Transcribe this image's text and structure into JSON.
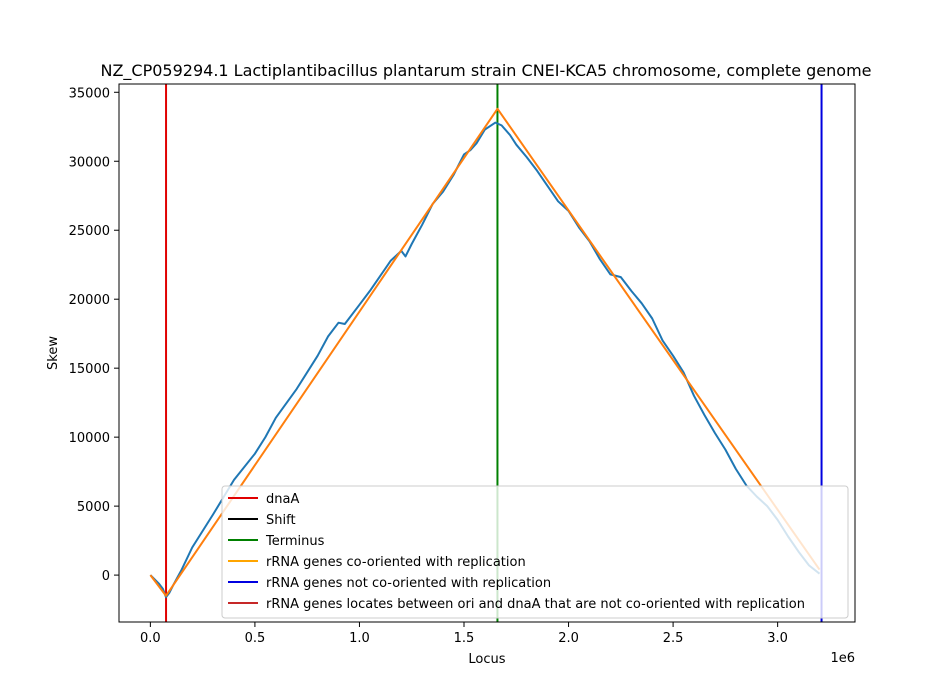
{
  "chart_data": {
    "type": "line",
    "title": "NZ_CP059294.1 Lactiplantibacillus plantarum strain CNEI-KCA5 chromosome, complete genome",
    "xlabel": "Locus",
    "ylabel": "Skew",
    "x_offset_label": "1e6",
    "xlim": [
      -150000,
      3370000
    ],
    "ylim": [
      -3400,
      35600
    ],
    "x_ticks": [
      0,
      500000,
      1000000,
      1500000,
      2000000,
      2500000,
      3000000
    ],
    "x_tick_labels": [
      "0.0",
      "0.5",
      "1.0",
      "1.5",
      "2.0",
      "2.5",
      "3.0"
    ],
    "y_ticks": [
      0,
      5000,
      10000,
      15000,
      20000,
      25000,
      30000,
      35000
    ],
    "y_tick_labels": [
      "0",
      "5000",
      "10000",
      "15000",
      "20000",
      "25000",
      "30000",
      "35000"
    ],
    "grid": false,
    "legend_position": "lower-right",
    "series": [
      {
        "color": "#1f77b4",
        "x": [
          0,
          40000,
          60000,
          75000,
          90000,
          110000,
          150000,
          200000,
          300000,
          400000,
          500000,
          550000,
          600000,
          700000,
          800000,
          850000,
          900000,
          930000,
          950000,
          1000000,
          1050000,
          1100000,
          1150000,
          1200000,
          1220000,
          1250000,
          1300000,
          1350000,
          1400000,
          1450000,
          1500000,
          1530000,
          1560000,
          1600000,
          1650000,
          1680000,
          1720000,
          1750000,
          1800000,
          1850000,
          1900000,
          1950000,
          2000000,
          2050000,
          2100000,
          2150000,
          2200000,
          2250000,
          2300000,
          2350000,
          2400000,
          2450000,
          2500000,
          2550000,
          2600000,
          2650000,
          2700000,
          2750000,
          2800000,
          2850000,
          2900000,
          2950000,
          3000000,
          3050000,
          3100000,
          3150000,
          3200000
        ],
        "y": [
          0,
          -600,
          -1000,
          -1600,
          -1300,
          -700,
          400,
          2000,
          4400,
          6900,
          8800,
          10000,
          11400,
          13500,
          15900,
          17300,
          18300,
          18200,
          18600,
          19600,
          20600,
          21700,
          22800,
          23500,
          23100,
          24000,
          25400,
          26900,
          27800,
          29000,
          30500,
          30800,
          31300,
          32300,
          32800,
          32600,
          31900,
          31200,
          30300,
          29300,
          28200,
          27100,
          26400,
          25200,
          24200,
          22900,
          21800,
          21600,
          20600,
          19700,
          18600,
          17000,
          15900,
          14700,
          13000,
          11600,
          10300,
          9100,
          7700,
          6500,
          5700,
          5000,
          4000,
          2800,
          1700,
          700,
          100
        ]
      },
      {
        "color": "#ff7f0e",
        "x": [
          0,
          75000,
          1660000,
          3200000
        ],
        "y": [
          0,
          -1500,
          33800,
          400
        ]
      }
    ],
    "vertical_lines": [
      {
        "name": "dnaA",
        "x": 75000,
        "color": "#e00000"
      },
      {
        "name": "Terminus",
        "x": 1660000,
        "color": "#008000"
      },
      {
        "name": "rRNA genes not co-oriented with replication",
        "x": 3210000,
        "color": "#0000e0"
      }
    ],
    "legend": [
      {
        "label": "dnaA",
        "color": "#e00000"
      },
      {
        "label": "Shift",
        "color": "#000000"
      },
      {
        "label": "Terminus",
        "color": "#008000"
      },
      {
        "label": "rRNA genes co-oriented with replication",
        "color": "#ffa500"
      },
      {
        "label": "rRNA genes not co-oriented with replication",
        "color": "#0000e0"
      },
      {
        "label": "rRNA genes locates between ori and dnaA that are not co-oriented with replication",
        "color": "#c62828"
      }
    ]
  }
}
